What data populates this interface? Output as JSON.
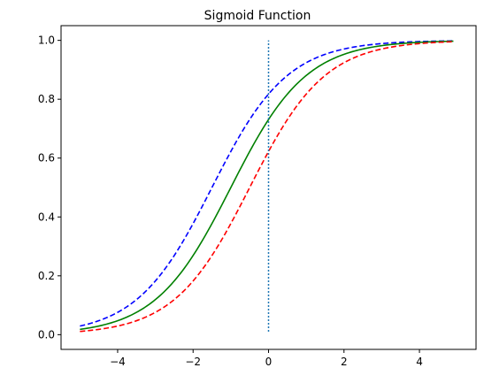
{
  "chart_data": {
    "type": "line",
    "title": "Sigmoid Function",
    "xlabel": "",
    "ylabel": "",
    "xlim": [
      -5.5,
      5.5
    ],
    "ylim": [
      -0.05,
      1.05
    ],
    "x_ticks": [
      -4,
      -2,
      0,
      2,
      4
    ],
    "x_tick_labels": [
      "−4",
      "−2",
      "0",
      "2",
      "4"
    ],
    "y_ticks": [
      0.0,
      0.2,
      0.4,
      0.6,
      0.8,
      1.0
    ],
    "y_tick_labels": [
      "0.0",
      "0.2",
      "0.4",
      "0.6",
      "0.8",
      "1.0"
    ],
    "grid": false,
    "legend": "none",
    "x_range": [
      -5,
      4.9
    ],
    "series": [
      {
        "shift": 1.5,
        "color": "#0000ff",
        "dash": "dashed"
      },
      {
        "shift": 1.0,
        "color": "#008000",
        "dash": "solid"
      },
      {
        "shift": 0.5,
        "color": "#ff0000",
        "dash": "dashed"
      }
    ],
    "vline": {
      "x": 0,
      "y": [
        0.01,
        1.0
      ],
      "color": "#1f77b4",
      "dash": "dotted"
    }
  }
}
